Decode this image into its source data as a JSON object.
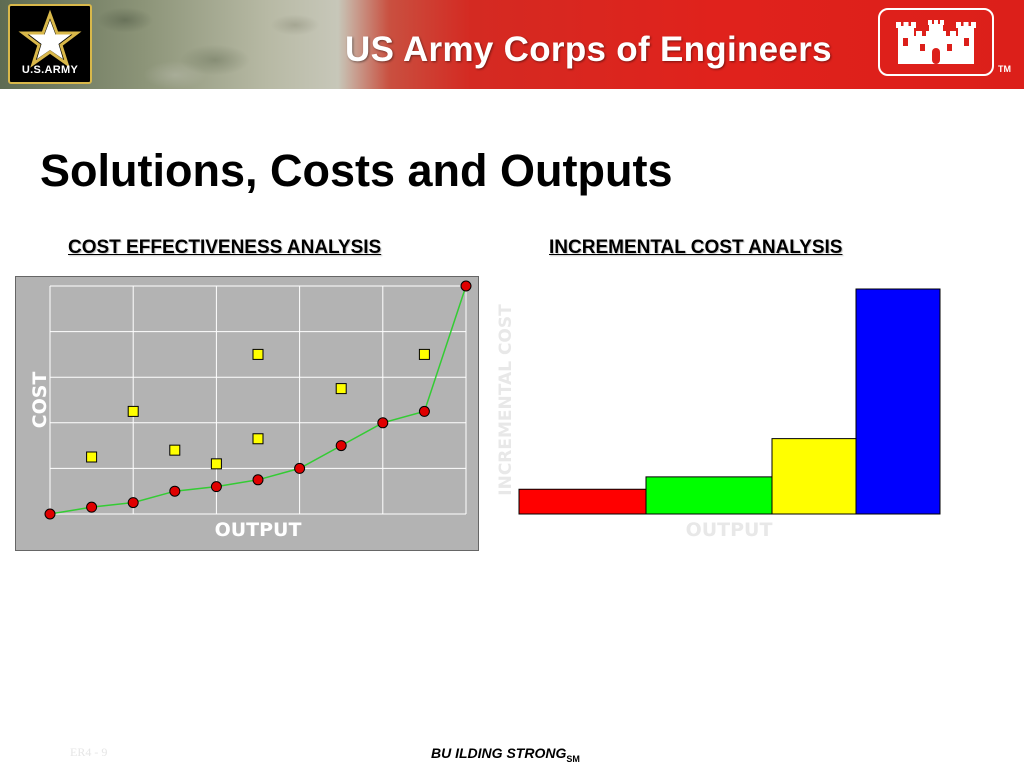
{
  "header": {
    "army_logo_text": "U.S.ARMY",
    "title": "US Army Corps of Engineers",
    "trademark": "TM",
    "star_icon": "star-icon",
    "castle_icon": "castle-icon"
  },
  "slide": {
    "title": "Solutions, Costs and Outputs"
  },
  "footer": {
    "slide_number": "ER4 - 9",
    "tagline": "BU ILDING STRONG",
    "tagline_suffix": "SM"
  },
  "chart_data": [
    {
      "type": "scatter",
      "title": "COST EFFECTIVENESS ANALYSIS",
      "xlabel": "OUTPUT",
      "ylabel": "COST",
      "grid": true,
      "xlim": [
        0,
        10
      ],
      "ylim": [
        0,
        5
      ],
      "series": [
        {
          "marker": "circle",
          "color": "#e00000",
          "line_color": "#33cc33",
          "x": [
            0,
            1,
            2,
            3,
            4,
            5,
            6,
            7,
            8,
            9,
            10
          ],
          "y": [
            0.0,
            0.15,
            0.25,
            0.5,
            0.6,
            0.75,
            1.0,
            1.5,
            2.0,
            2.25,
            5.0
          ]
        },
        {
          "marker": "square",
          "color": "#ffff00",
          "x": [
            1,
            2,
            3,
            4,
            5,
            5,
            7,
            9
          ],
          "y": [
            1.25,
            2.25,
            1.4,
            1.1,
            1.65,
            3.5,
            2.75,
            3.5
          ]
        }
      ],
      "background": "#b3b3b3"
    },
    {
      "type": "bar",
      "title": "INCREMENTAL COST ANALYSIS",
      "xlabel": "OUTPUT",
      "ylabel": "INCREMENTAL COST",
      "ylim": [
        0,
        100
      ],
      "bars": [
        {
          "width": 127,
          "value": 11,
          "color": "#ff0000"
        },
        {
          "width": 126,
          "value": 16.5,
          "color": "#00ff00"
        },
        {
          "width": 84,
          "value": 33.5,
          "color": "#ffff00"
        },
        {
          "width": 84,
          "value": 100,
          "color": "#0000ff"
        }
      ]
    }
  ]
}
